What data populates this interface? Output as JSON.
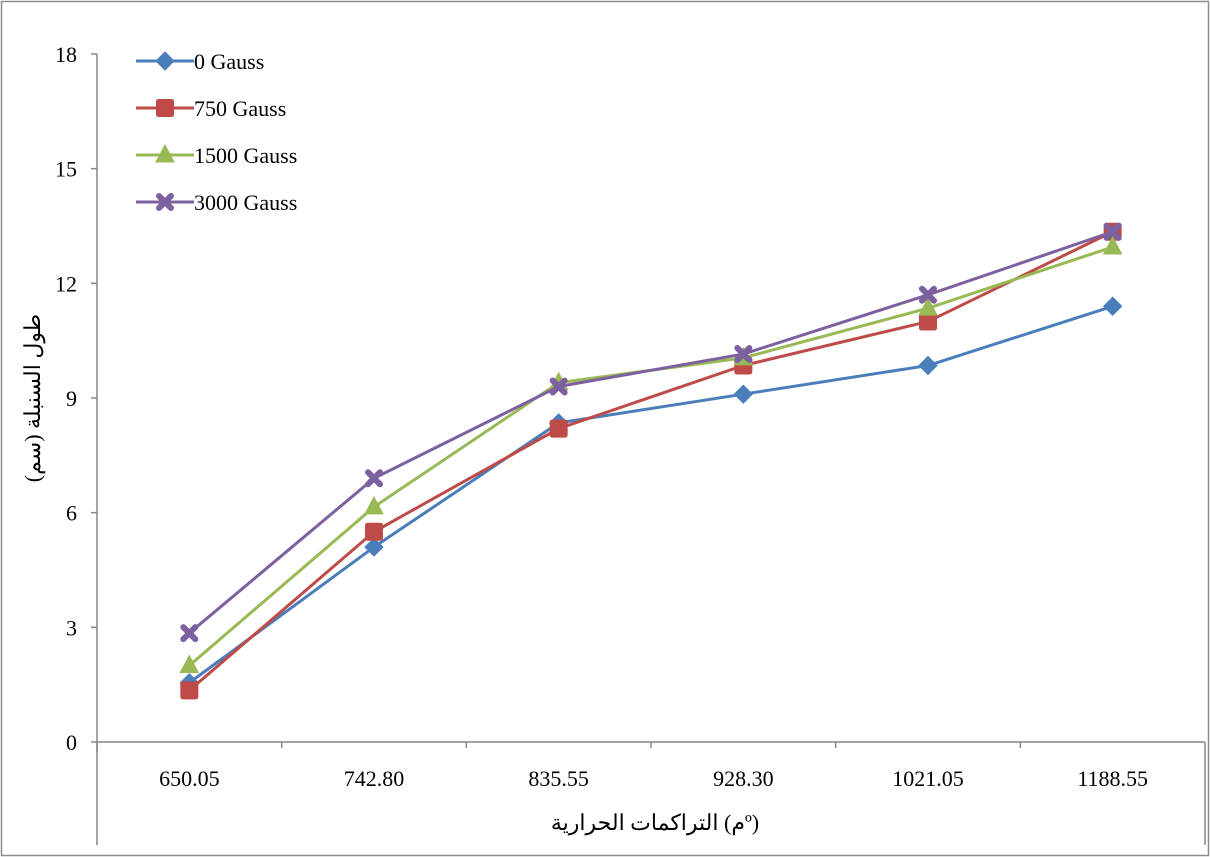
{
  "chart_data": {
    "type": "line",
    "title": "",
    "xlabel": "التراكمات الحرارية (مº)",
    "ylabel": "طول السنبلة (سم)",
    "categories": [
      "650.05",
      "742.80",
      "835.55",
      "928.30",
      "1021.05",
      "1188.55"
    ],
    "ylim": [
      0,
      18
    ],
    "yticks": [
      0,
      3,
      6,
      9,
      12,
      15,
      18
    ],
    "grid": false,
    "legend_position": "top-left",
    "series": [
      {
        "name": "0 Gauss",
        "marker": "diamond",
        "color": "#4A7EBB",
        "values": [
          1.55,
          5.1,
          8.35,
          9.1,
          9.85,
          11.4
        ]
      },
      {
        "name": "750 Gauss",
        "marker": "square",
        "color": "#BE4B48",
        "values": [
          1.35,
          5.5,
          8.2,
          9.85,
          11.0,
          13.35
        ]
      },
      {
        "name": "1500 Gauss",
        "marker": "triangle",
        "color": "#98B954",
        "values": [
          2.0,
          6.15,
          9.4,
          10.05,
          11.35,
          12.95
        ]
      },
      {
        "name": "3000 Gauss",
        "marker": "x",
        "color": "#7D60A0",
        "values": [
          2.85,
          6.9,
          9.3,
          10.15,
          11.7,
          13.35
        ]
      }
    ]
  }
}
